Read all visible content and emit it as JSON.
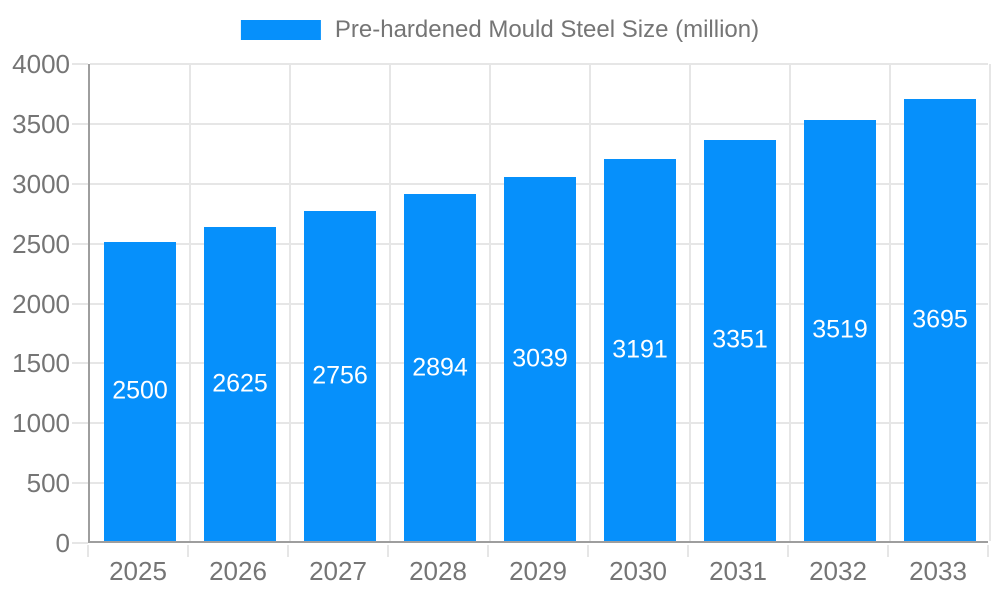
{
  "chart_data": {
    "type": "bar",
    "title": "Pre-hardened Mould Steel Size (million)",
    "legend": "Pre-hardened Mould Steel Size (million)",
    "legend_position": "top",
    "categories": [
      "2025",
      "2026",
      "2027",
      "2028",
      "2029",
      "2030",
      "2031",
      "2032",
      "2033"
    ],
    "values": [
      2500,
      2625,
      2756,
      2894,
      3039,
      3191,
      3351,
      3519,
      3695
    ],
    "xlabel": "",
    "ylabel": "",
    "ylim": [
      0,
      4000
    ],
    "y_ticks": [
      0,
      500,
      1000,
      1500,
      2000,
      2500,
      3000,
      3500,
      4000
    ],
    "grid": true,
    "bar_labels_inside": true,
    "colors": {
      "bar": "#0690fb",
      "axis_text": "#757575",
      "bar_label_text": "#ffffff",
      "gridline": "#e6e6e6",
      "axis_line": "#9e9e9e",
      "background": "#ffffff"
    }
  }
}
